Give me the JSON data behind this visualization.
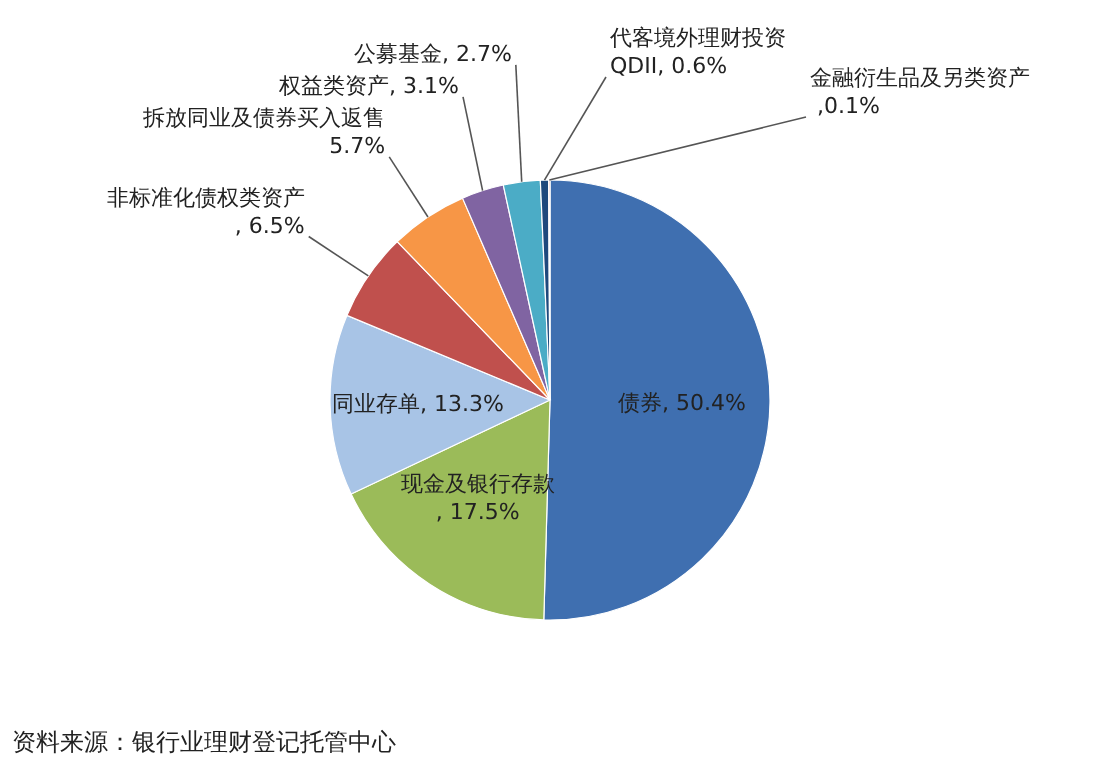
{
  "chart_data": {
    "type": "pie",
    "categories": [
      "债券",
      "现金及银行存款",
      "同业存单",
      "非标准化债权类资产",
      "拆放同业及债券买入返售",
      "权益类资产",
      "公募基金",
      "代客境外理财投资",
      "金融衍生品及另类资产"
    ],
    "values": [
      50.4,
      17.5,
      13.3,
      6.5,
      5.7,
      3.1,
      2.7,
      0.6,
      0.1
    ],
    "value_labels": [
      ", 50.4%",
      ", 17.5%",
      ", 13.3%",
      ", 6.5%",
      "5.7%",
      ", 3.1%",
      ", 2.7%",
      "QDII, 0.6%",
      " ,0.1%"
    ],
    "colors": [
      "#3f6fb0",
      "#9bbb59",
      "#a8c4e6",
      "#c0504d",
      "#f79646",
      "#8064a2",
      "#4bacc6",
      "#1f497d",
      "#c0504d"
    ],
    "annotations": [
      "资料来源：银行业理财登记托管中心"
    ]
  }
}
